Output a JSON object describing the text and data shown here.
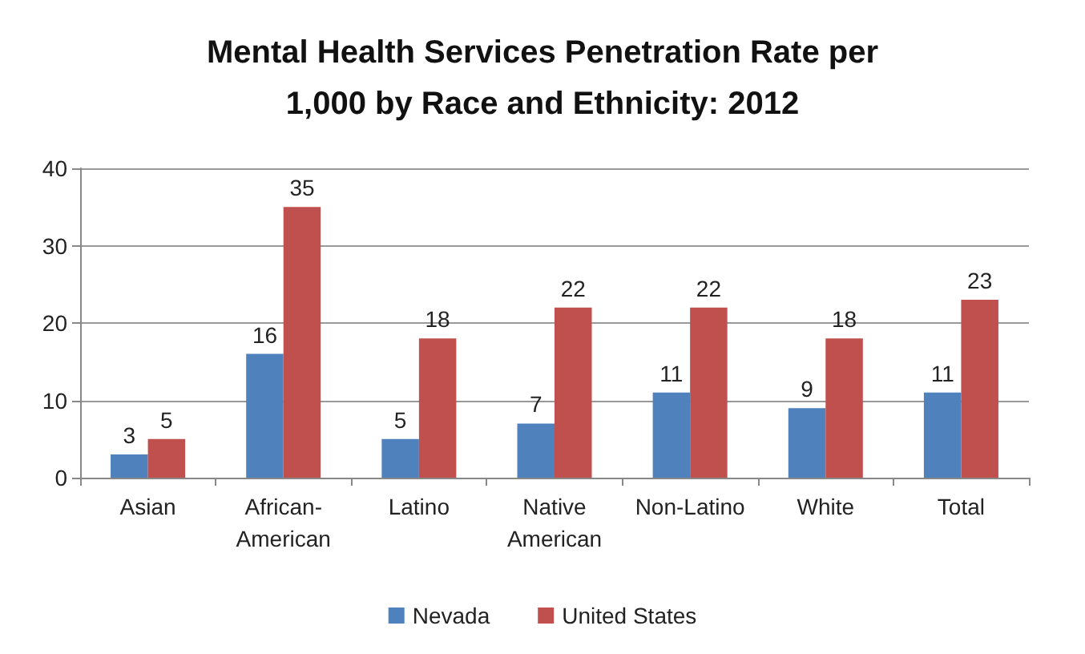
{
  "chart_data": {
    "type": "bar",
    "title": "Mental Health Services Penetration Rate per\n1,000 by Race and Ethnicity: 2012",
    "categories": [
      "Asian",
      "African-American",
      "Latino",
      "Native American",
      "Non-Latino",
      "White",
      "Total"
    ],
    "series": [
      {
        "name": "Nevada",
        "color": "#4f81bd",
        "values": [
          3,
          16,
          5,
          7,
          11,
          9,
          11
        ]
      },
      {
        "name": "United States",
        "color": "#c0504d",
        "values": [
          5,
          35,
          18,
          22,
          22,
          18,
          23
        ]
      }
    ],
    "ylim": [
      0,
      40
    ],
    "yticks": [
      0,
      10,
      20,
      30,
      40
    ],
    "grid": "y",
    "legend": "bottom",
    "data_labels": true
  }
}
